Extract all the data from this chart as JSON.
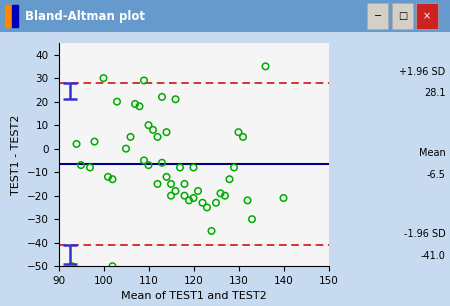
{
  "title": "Bland-Altman plot",
  "xlabel": "Mean of TEST1 and TEST2",
  "ylabel": "TEST1 - TEST2",
  "mean_line": -6.5,
  "upper_loa": 28.1,
  "lower_loa": -41.0,
  "xlim": [
    90,
    150
  ],
  "ylim": [
    -50,
    45
  ],
  "xticks": [
    90,
    100,
    110,
    120,
    130,
    140,
    150
  ],
  "yticks": [
    -50,
    -40,
    -30,
    -20,
    -10,
    0,
    10,
    20,
    30,
    40
  ],
  "scatter_x": [
    94,
    95,
    97,
    98,
    100,
    101,
    102,
    103,
    105,
    106,
    107,
    108,
    109,
    109,
    110,
    110,
    111,
    112,
    112,
    113,
    113,
    114,
    114,
    115,
    115,
    116,
    116,
    117,
    118,
    118,
    119,
    120,
    120,
    121,
    122,
    123,
    124,
    125,
    126,
    127,
    128,
    129,
    130,
    131,
    132,
    133,
    136,
    140,
    93,
    102
  ],
  "scatter_y": [
    2,
    -7,
    -8,
    3,
    30,
    -12,
    -13,
    20,
    0,
    5,
    19,
    18,
    29,
    -5,
    -7,
    10,
    8,
    5,
    -15,
    -6,
    22,
    7,
    -12,
    -20,
    -15,
    -18,
    21,
    -8,
    -15,
    -20,
    -22,
    -8,
    -21,
    -18,
    -23,
    -25,
    -35,
    -23,
    -19,
    -20,
    -13,
    -8,
    7,
    5,
    -22,
    -30,
    35,
    -21,
    -50,
    -50
  ],
  "error_bar_upper_x": 92.5,
  "error_bar_upper_y_center": 24.5,
  "error_bar_upper_y_low": 21,
  "error_bar_upper_y_high": 28.1,
  "error_bar_lower_x": 92.5,
  "error_bar_lower_y_center": -44.5,
  "error_bar_lower_y_low": -49,
  "error_bar_lower_y_high": -41.0,
  "scatter_color": "#00aa00",
  "mean_line_color": "#00008B",
  "loa_line_color": "#cc0000",
  "error_bar_color": "#3333cc",
  "plot_bg": "#f5f5f5",
  "window_bg": "#d4d0c8",
  "outer_bg": "#c8daf0",
  "title_bar_bg": "#6699cc"
}
